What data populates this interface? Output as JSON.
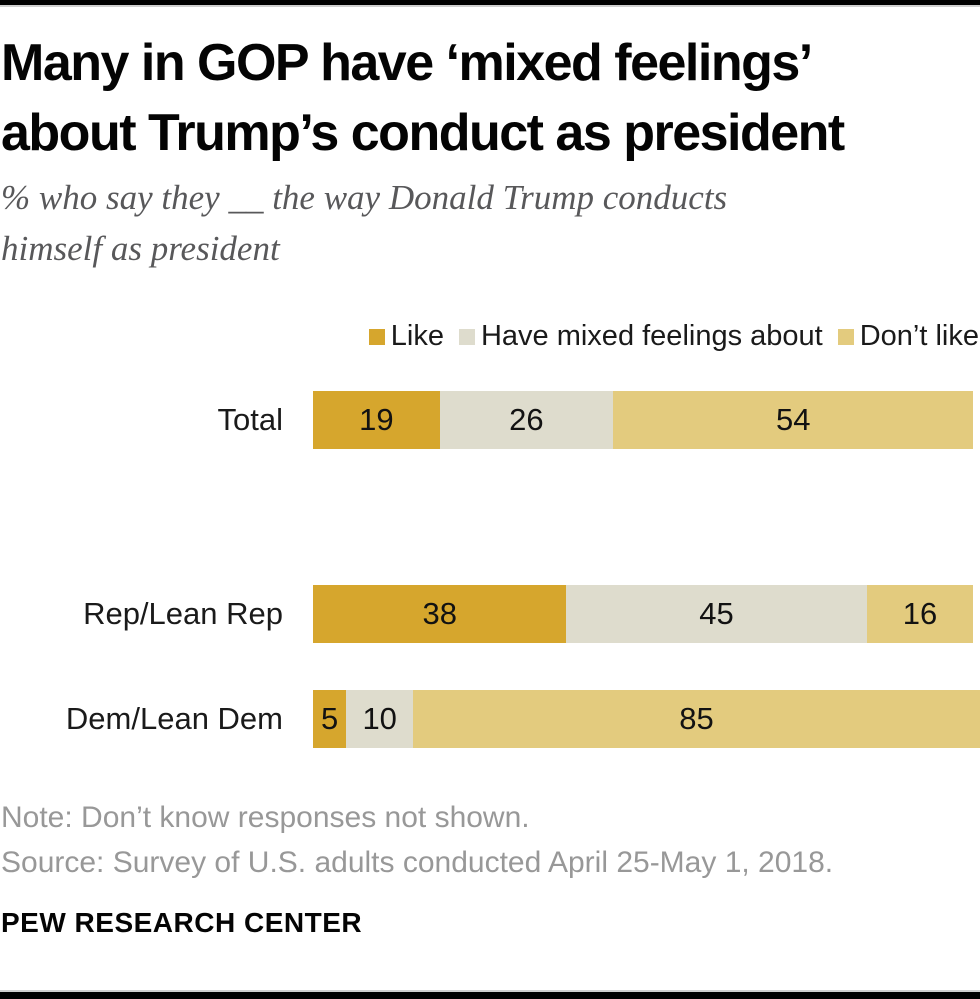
{
  "header": {
    "title_lines": [
      "Many in GOP have ‘mixed feelings’",
      "about Trump’s conduct as president"
    ],
    "subtitle_lines": [
      "% who say they __ the way Donald Trump conducts",
      "himself as president"
    ]
  },
  "chart_data": {
    "type": "bar",
    "orientation": "horizontal",
    "stacked": true,
    "unit": "percent",
    "xlim": [
      0,
      100
    ],
    "legend_position": "top-right",
    "grid": false,
    "categories": [
      "Total",
      "Rep/Lean Rep",
      "Dem/Lean Dem"
    ],
    "series": [
      {
        "name": "Like",
        "color": "#d6a62d",
        "values": [
          19,
          38,
          5
        ]
      },
      {
        "name": "Have mixed feelings about",
        "color": "#dedccd",
        "values": [
          26,
          45,
          10
        ]
      },
      {
        "name": "Don’t like",
        "color": "#e3cb7e",
        "values": [
          54,
          16,
          85
        ]
      }
    ]
  },
  "footer": {
    "note": "Note: Don’t know responses not shown.",
    "source": "Source: Survey of U.S. adults conducted April 25-May 1, 2018.",
    "brand": "PEW RESEARCH CENTER"
  }
}
